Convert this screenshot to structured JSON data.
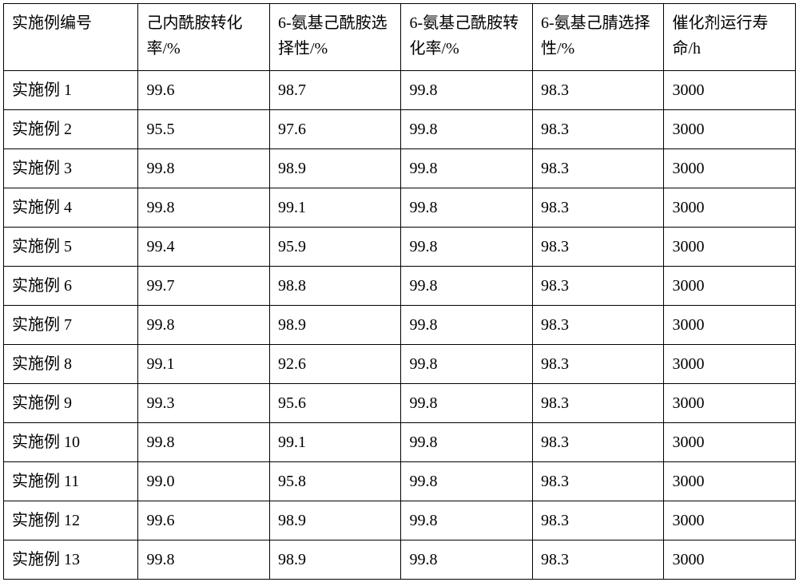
{
  "table": {
    "type": "table",
    "columns": [
      {
        "label": "实施例编号",
        "width": "17%",
        "align": "left"
      },
      {
        "label": "己内酰胺转化率/%",
        "width": "16.6%",
        "align": "left"
      },
      {
        "label": "6-氨基己酰胺选择性/%",
        "width": "16.6%",
        "align": "left"
      },
      {
        "label": "6-氨基己酰胺转化率/%",
        "width": "16.6%",
        "align": "left"
      },
      {
        "label": "6-氨基己腈选择性/%",
        "width": "16.6%",
        "align": "left"
      },
      {
        "label": "催化剂运行寿命/h",
        "width": "16.6%",
        "align": "left"
      }
    ],
    "rows": [
      [
        "实施例 1",
        "99.6",
        "98.7",
        "99.8",
        "98.3",
        "3000"
      ],
      [
        "实施例 2",
        "95.5",
        "97.6",
        "99.8",
        "98.3",
        "3000"
      ],
      [
        "实施例 3",
        "99.8",
        "98.9",
        "99.8",
        "98.3",
        "3000"
      ],
      [
        "实施例 4",
        "99.8",
        "99.1",
        "99.8",
        "98.3",
        "3000"
      ],
      [
        "实施例 5",
        "99.4",
        "95.9",
        "99.8",
        "98.3",
        "3000"
      ],
      [
        "实施例 6",
        "99.7",
        "98.8",
        "99.8",
        "98.3",
        "3000"
      ],
      [
        "实施例 7",
        "99.8",
        "98.9",
        "99.8",
        "98.3",
        "3000"
      ],
      [
        "实施例 8",
        "99.1",
        "92.6",
        "99.8",
        "98.3",
        "3000"
      ],
      [
        "实施例 9",
        "99.3",
        "95.6",
        "99.8",
        "98.3",
        "3000"
      ],
      [
        "实施例 10",
        "99.8",
        "99.1",
        "99.8",
        "98.3",
        "3000"
      ],
      [
        "实施例 11",
        "99.0",
        "95.8",
        "99.8",
        "98.3",
        "3000"
      ],
      [
        "实施例 12",
        "99.6",
        "98.9",
        "99.8",
        "98.3",
        "3000"
      ],
      [
        "实施例 13",
        "99.8",
        "98.9",
        "99.8",
        "98.3",
        "3000"
      ]
    ],
    "styling": {
      "border_color": "#000000",
      "border_width": 1,
      "background_color": "#ffffff",
      "text_color": "#000000",
      "font_family": "SimSun",
      "header_fontsize": 20,
      "cell_fontsize": 20,
      "header_row_height": 84,
      "body_row_height": 49,
      "cell_padding": "8px 10px"
    }
  }
}
